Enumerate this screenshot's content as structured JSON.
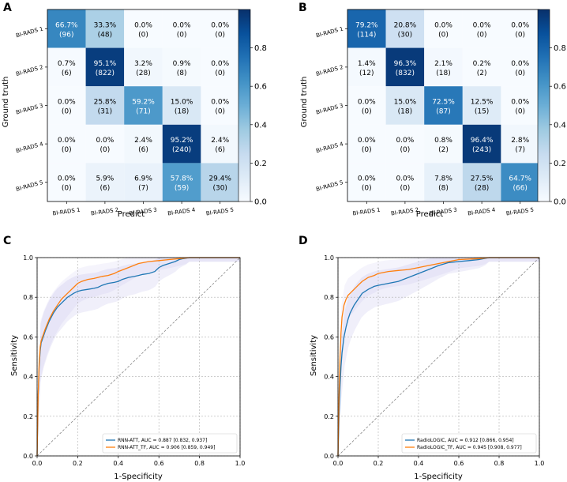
{
  "chart_data": [
    {
      "id": "A",
      "type": "heatmap",
      "panel_label": "A",
      "xlabel": "Predict",
      "ylabel": "Ground truth",
      "categories": [
        "BI-RADS 1",
        "BI-RADS 2",
        "BI-RADS 3",
        "BI-RADS 4",
        "BI-RADS 5"
      ],
      "percent_labels": [
        [
          "66.7%",
          "33.3%",
          "0.0%",
          "0.0%",
          "0.0%"
        ],
        [
          "0.7%",
          "95.1%",
          "3.2%",
          "0.9%",
          "0.0%"
        ],
        [
          "0.0%",
          "25.8%",
          "59.2%",
          "15.0%",
          "0.0%"
        ],
        [
          "0.0%",
          "0.0%",
          "2.4%",
          "95.2%",
          "2.4%"
        ],
        [
          "0.0%",
          "5.9%",
          "6.9%",
          "57.8%",
          "29.4%"
        ]
      ],
      "count_labels": [
        [
          "(96)",
          "(48)",
          "(0)",
          "(0)",
          "(0)"
        ],
        [
          "(6)",
          "(822)",
          "(28)",
          "(8)",
          "(0)"
        ],
        [
          "(0)",
          "(31)",
          "(71)",
          "(18)",
          "(0)"
        ],
        [
          "(0)",
          "(0)",
          "(6)",
          "(240)",
          "(6)"
        ],
        [
          "(0)",
          "(6)",
          "(7)",
          "(59)",
          "(30)"
        ]
      ],
      "values": [
        [
          0.667,
          0.333,
          0.0,
          0.0,
          0.0
        ],
        [
          0.007,
          0.951,
          0.032,
          0.009,
          0.0
        ],
        [
          0.0,
          0.258,
          0.592,
          0.15,
          0.0
        ],
        [
          0.0,
          0.0,
          0.024,
          0.952,
          0.024
        ],
        [
          0.0,
          0.059,
          0.069,
          0.578,
          0.294
        ]
      ],
      "colorbar_range": [
        0,
        1
      ],
      "colorbar_ticks": [
        "0.0",
        "0.2",
        "0.4",
        "0.6",
        "0.8"
      ]
    },
    {
      "id": "B",
      "type": "heatmap",
      "panel_label": "B",
      "xlabel": "Predict",
      "ylabel": "Ground truth",
      "categories": [
        "BI-RADS 1",
        "BI-RADS 2",
        "BI-RADS 3",
        "BI-RADS 4",
        "BI-RADS 5"
      ],
      "percent_labels": [
        [
          "79.2%",
          "20.8%",
          "0.0%",
          "0.0%",
          "0.0%"
        ],
        [
          "1.4%",
          "96.3%",
          "2.1%",
          "0.2%",
          "0.0%"
        ],
        [
          "0.0%",
          "15.0%",
          "72.5%",
          "12.5%",
          "0.0%"
        ],
        [
          "0.0%",
          "0.0%",
          "0.8%",
          "96.4%",
          "2.8%"
        ],
        [
          "0.0%",
          "0.0%",
          "7.8%",
          "27.5%",
          "64.7%"
        ]
      ],
      "count_labels": [
        [
          "(114)",
          "(30)",
          "(0)",
          "(0)",
          "(0)"
        ],
        [
          "(12)",
          "(832)",
          "(18)",
          "(2)",
          "(0)"
        ],
        [
          "(0)",
          "(18)",
          "(87)",
          "(15)",
          "(0)"
        ],
        [
          "(0)",
          "(0)",
          "(2)",
          "(243)",
          "(7)"
        ],
        [
          "(0)",
          "(0)",
          "(8)",
          "(28)",
          "(66)"
        ]
      ],
      "values": [
        [
          0.792,
          0.208,
          0.0,
          0.0,
          0.0
        ],
        [
          0.014,
          0.963,
          0.021,
          0.002,
          0.0
        ],
        [
          0.0,
          0.15,
          0.725,
          0.125,
          0.0
        ],
        [
          0.0,
          0.0,
          0.008,
          0.964,
          0.028
        ],
        [
          0.0,
          0.0,
          0.078,
          0.275,
          0.647
        ]
      ],
      "colorbar_range": [
        0,
        1
      ],
      "colorbar_ticks": [
        "0.0",
        "0.2",
        "0.4",
        "0.6",
        "0.8"
      ]
    },
    {
      "id": "C",
      "type": "line",
      "panel_label": "C",
      "xlabel": "1-Specificity",
      "ylabel": "Sensitivity",
      "xlim": [
        0,
        1
      ],
      "ylim": [
        0,
        1
      ],
      "xticks": [
        "0.0",
        "0.2",
        "0.4",
        "0.6",
        "0.8",
        "1.0"
      ],
      "yticks": [
        "0.0",
        "0.2",
        "0.4",
        "0.6",
        "0.8",
        "1.0"
      ],
      "grid": true,
      "legend_position": "bottom-right",
      "series": [
        {
          "name": "RNN-ATT, AUC = 0.887 [0.832, 0.937]",
          "color": "#1f77b4",
          "x": [
            0,
            0.005,
            0.01,
            0.015,
            0.02,
            0.03,
            0.04,
            0.06,
            0.08,
            0.1,
            0.12,
            0.15,
            0.18,
            0.2,
            0.22,
            0.25,
            0.28,
            0.3,
            0.32,
            0.35,
            0.38,
            0.4,
            0.42,
            0.45,
            0.48,
            0.5,
            0.52,
            0.55,
            0.58,
            0.6,
            0.62,
            0.65,
            0.68,
            0.7,
            0.72,
            0.75,
            0.8,
            1.0
          ],
          "y": [
            0,
            0.3,
            0.45,
            0.53,
            0.57,
            0.6,
            0.63,
            0.68,
            0.72,
            0.75,
            0.77,
            0.8,
            0.82,
            0.83,
            0.835,
            0.84,
            0.845,
            0.85,
            0.86,
            0.87,
            0.875,
            0.88,
            0.89,
            0.9,
            0.905,
            0.91,
            0.915,
            0.92,
            0.93,
            0.95,
            0.96,
            0.97,
            0.98,
            0.99,
            0.995,
            1.0,
            1.0,
            1.0
          ]
        },
        {
          "name": "RNN-ATT_TF, AUC = 0.906 [0.859, 0.949]",
          "color": "#ff7f0e",
          "x": [
            0,
            0.005,
            0.01,
            0.015,
            0.02,
            0.03,
            0.04,
            0.06,
            0.08,
            0.1,
            0.12,
            0.15,
            0.18,
            0.2,
            0.22,
            0.25,
            0.28,
            0.3,
            0.32,
            0.35,
            0.38,
            0.4,
            0.45,
            0.5,
            0.55,
            0.6,
            0.65,
            0.7,
            0.75,
            1.0
          ],
          "y": [
            0,
            0.3,
            0.47,
            0.55,
            0.58,
            0.61,
            0.64,
            0.69,
            0.73,
            0.76,
            0.79,
            0.82,
            0.85,
            0.87,
            0.88,
            0.89,
            0.895,
            0.9,
            0.905,
            0.91,
            0.92,
            0.93,
            0.95,
            0.97,
            0.98,
            0.985,
            0.99,
            0.995,
            1.0,
            1.0
          ]
        }
      ]
    },
    {
      "id": "D",
      "type": "line",
      "panel_label": "D",
      "xlabel": "1-Specificity",
      "ylabel": "Sensitivity",
      "xlim": [
        0,
        1
      ],
      "ylim": [
        0,
        1
      ],
      "xticks": [
        "0.0",
        "0.2",
        "0.4",
        "0.6",
        "0.8",
        "1.0"
      ],
      "yticks": [
        "0.0",
        "0.2",
        "0.4",
        "0.6",
        "0.8",
        "1.0"
      ],
      "grid": true,
      "legend_position": "bottom-right",
      "series": [
        {
          "name": "RadioLOGIC, AUC = 0.912 [0.866, 0.954]",
          "color": "#1f77b4",
          "x": [
            0,
            0.005,
            0.01,
            0.015,
            0.02,
            0.03,
            0.04,
            0.05,
            0.06,
            0.08,
            0.1,
            0.12,
            0.15,
            0.18,
            0.2,
            0.25,
            0.3,
            0.35,
            0.4,
            0.45,
            0.5,
            0.55,
            0.6,
            0.65,
            0.7,
            0.75,
            1.0
          ],
          "y": [
            0,
            0.2,
            0.35,
            0.45,
            0.52,
            0.6,
            0.65,
            0.69,
            0.72,
            0.76,
            0.79,
            0.82,
            0.84,
            0.855,
            0.86,
            0.87,
            0.88,
            0.9,
            0.92,
            0.94,
            0.96,
            0.975,
            0.98,
            0.985,
            0.99,
            1.0,
            1.0
          ]
        },
        {
          "name": "RadioLOGIC_TF, AUC = 0.945 [0.908, 0.977]",
          "color": "#ff7f0e",
          "x": [
            0,
            0.005,
            0.01,
            0.015,
            0.02,
            0.03,
            0.04,
            0.05,
            0.06,
            0.08,
            0.1,
            0.12,
            0.15,
            0.18,
            0.2,
            0.25,
            0.3,
            0.35,
            0.4,
            0.45,
            0.5,
            0.55,
            0.6,
            0.7,
            0.75,
            1.0
          ],
          "y": [
            0,
            0.3,
            0.5,
            0.62,
            0.7,
            0.76,
            0.79,
            0.81,
            0.82,
            0.84,
            0.86,
            0.88,
            0.9,
            0.91,
            0.92,
            0.93,
            0.935,
            0.94,
            0.95,
            0.96,
            0.97,
            0.98,
            0.99,
            0.995,
            1.0,
            1.0
          ]
        }
      ]
    }
  ]
}
